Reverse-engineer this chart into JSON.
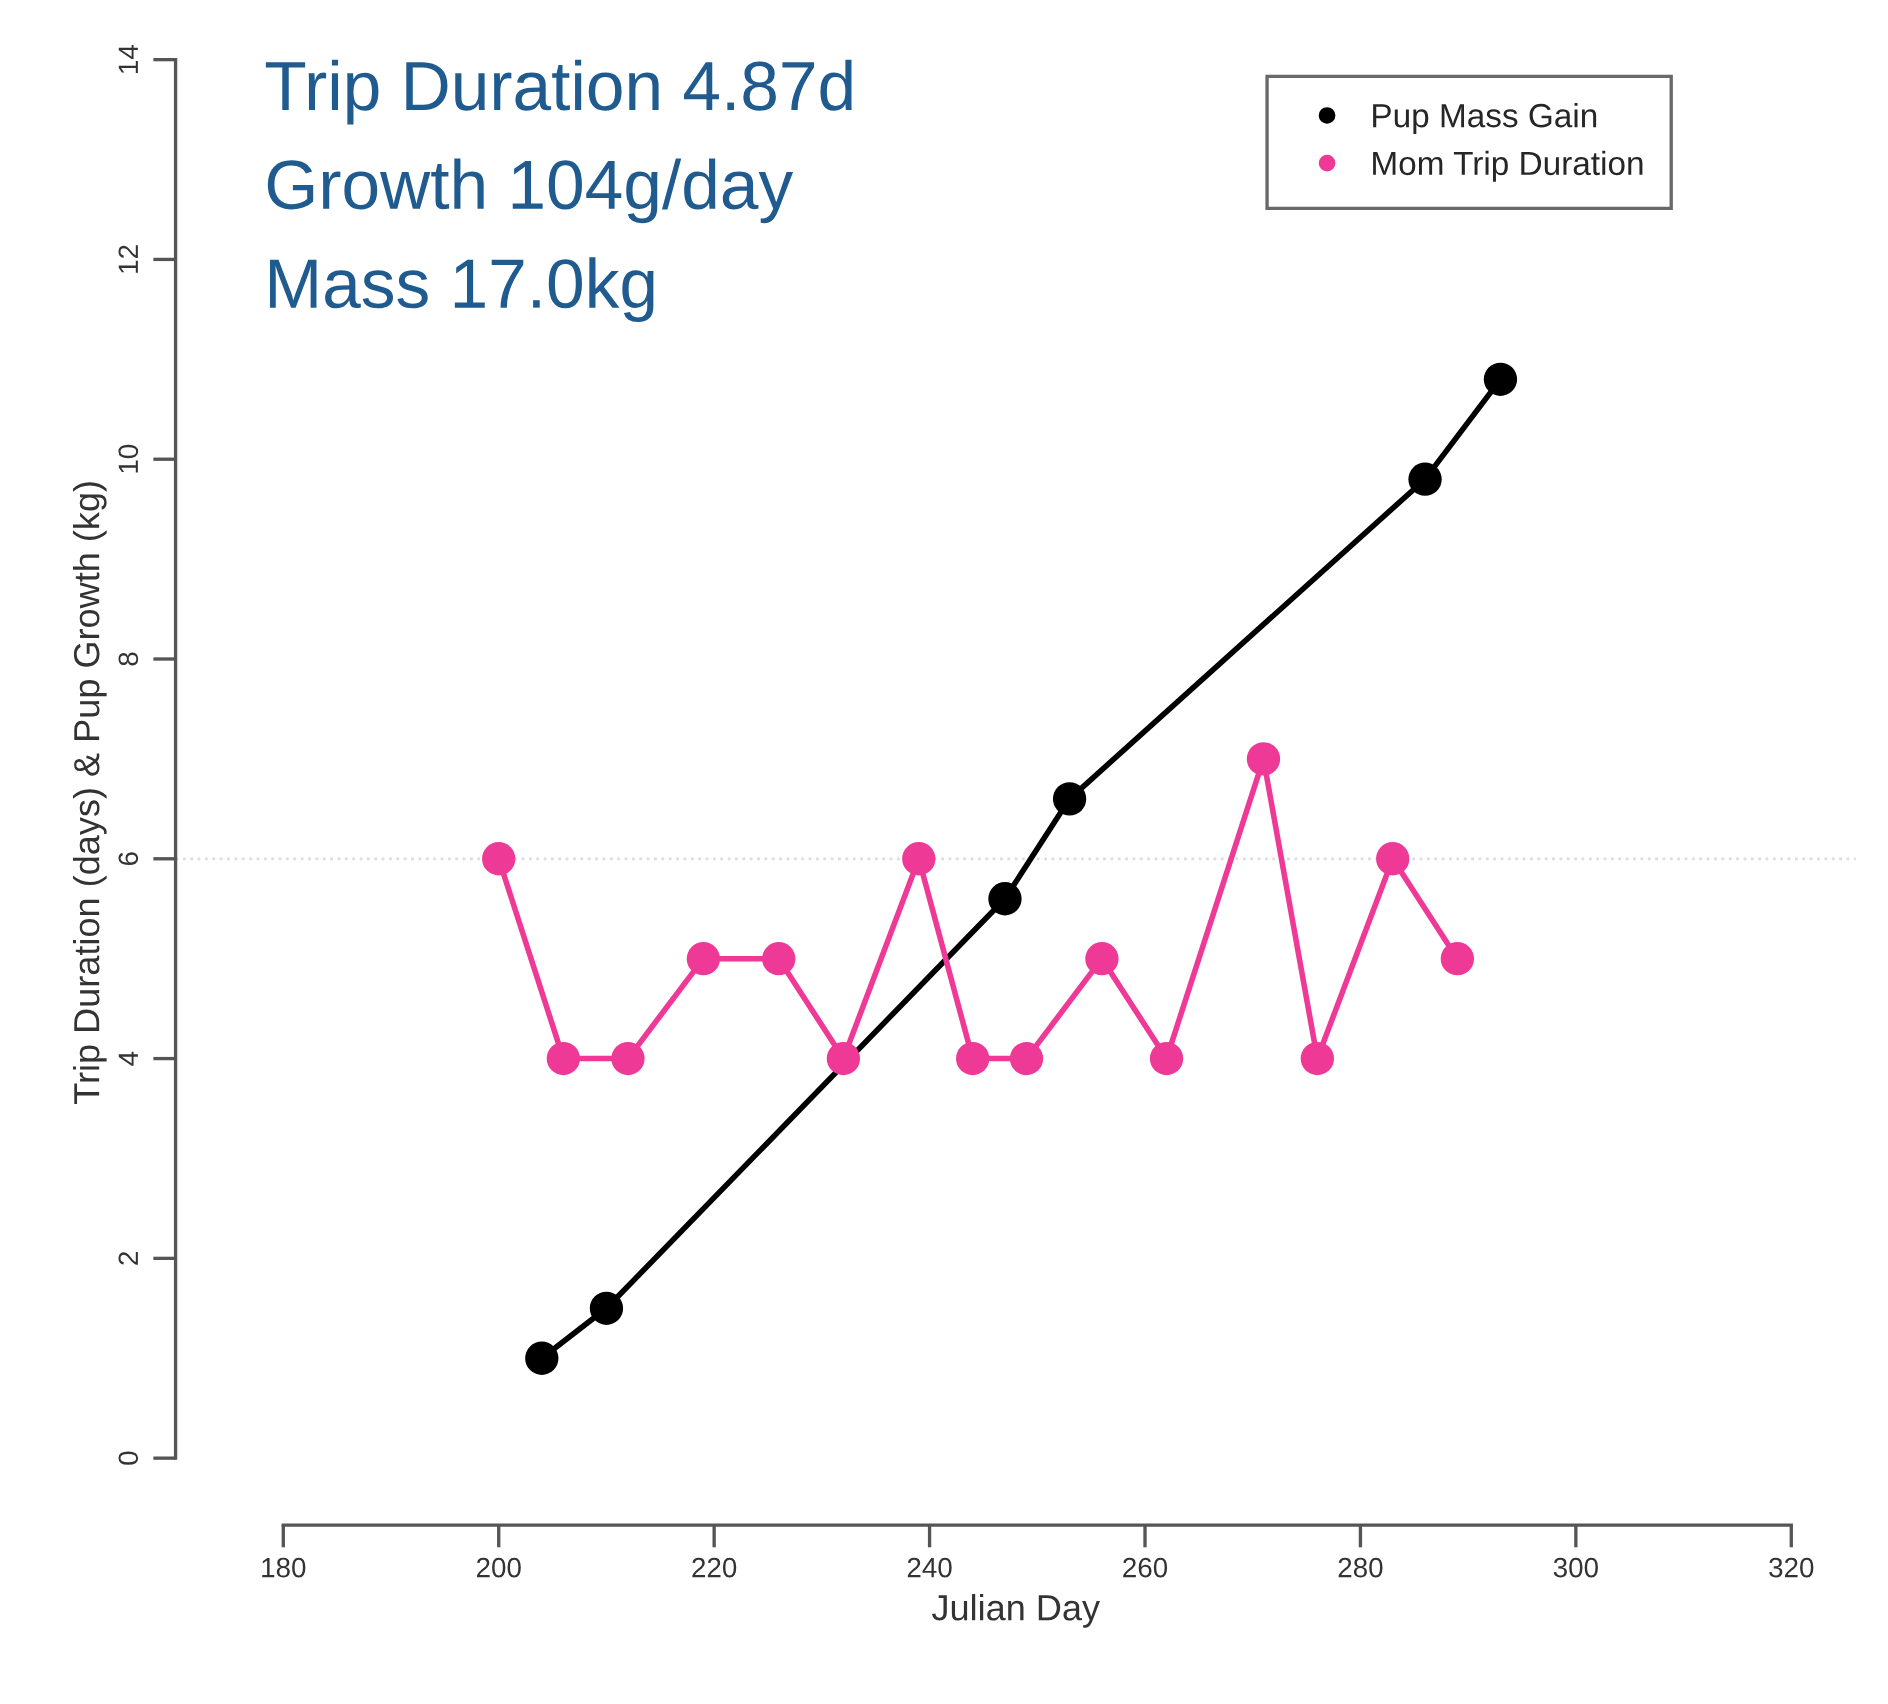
{
  "chart_data": {
    "type": "line",
    "xlabel": "Julian Day",
    "ylabel": "Trip Duration (days) & Pup Growth (kg)",
    "annotations": [
      "Trip Duration 4.87d",
      "Growth 104g/day",
      "Mass 17.0kg"
    ],
    "series": [
      {
        "name": "Pup Mass Gain",
        "color": "#000000",
        "x": [
          204,
          210,
          247,
          253,
          286,
          293
        ],
        "values": [
          1.0,
          1.5,
          5.6,
          6.6,
          9.8,
          10.8
        ]
      },
      {
        "name": "Mom Trip Duration",
        "color": "#ee3a96",
        "x": [
          200,
          206,
          212,
          219,
          226,
          232,
          239,
          244,
          249,
          256,
          262,
          271,
          276,
          283,
          289
        ],
        "values": [
          6,
          4,
          4,
          5,
          5,
          4,
          6,
          4,
          4,
          5,
          4,
          7,
          4,
          6,
          5
        ]
      }
    ],
    "xlim": [
      170,
      326
    ],
    "xticks": [
      180,
      200,
      220,
      240,
      260,
      280,
      300,
      320
    ],
    "ylim": [
      -0.67,
      14
    ],
    "yticks": [
      0,
      2,
      4,
      6,
      8,
      10,
      12,
      14
    ],
    "ref_lines": [
      {
        "axis": "y",
        "value": 6,
        "color": "#dddddd",
        "line_style": "dotted"
      }
    ],
    "marker": "circle",
    "line_style": "solid",
    "grid": false,
    "legend": "top right"
  }
}
